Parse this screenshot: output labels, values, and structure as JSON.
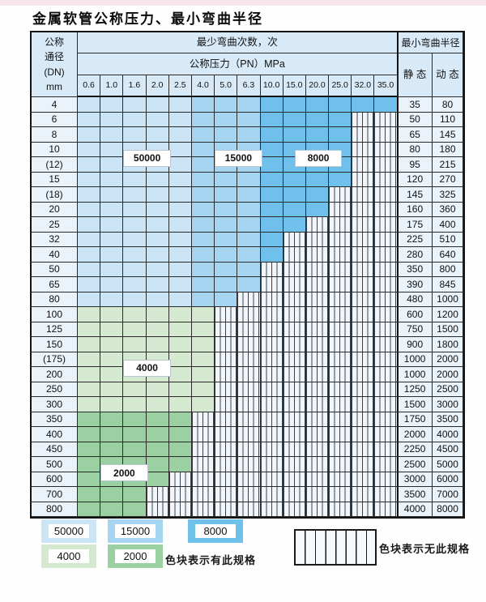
{
  "title": "金属软管公称压力、最小弯曲半径",
  "table": {
    "corner_header": {
      "line1": "公称",
      "line2": "通径",
      "line3": "(DN)",
      "line4": "mm"
    },
    "bend_cycles_header": "最少弯曲次数，次",
    "pressure_header": "公称压力（PN）MPa",
    "radius_header": "最小弯曲半径",
    "static_header": "静 态",
    "dynamic_header": "动 态",
    "pressure_ticks": [
      "0.6",
      "1.0",
      "1.6",
      "2.0",
      "2.5",
      "4.0",
      "5.0",
      "6.3",
      "10.0",
      "15.0",
      "20.0",
      "25.0",
      "32.0",
      "35.0"
    ],
    "rows": [
      {
        "dn": "4",
        "zone": "blue",
        "colored_until": "35.0",
        "static": "35",
        "dynamic": "80"
      },
      {
        "dn": "6",
        "zone": "blue",
        "colored_until": "25.0",
        "static": "50",
        "dynamic": "110"
      },
      {
        "dn": "8",
        "zone": "blue",
        "colored_until": "25.0",
        "static": "65",
        "dynamic": "145"
      },
      {
        "dn": "10",
        "zone": "blue",
        "colored_until": "25.0",
        "static": "80",
        "dynamic": "180"
      },
      {
        "dn": "(12)",
        "zone": "blue",
        "colored_until": "25.0",
        "static": "95",
        "dynamic": "215"
      },
      {
        "dn": "15",
        "zone": "blue",
        "colored_until": "25.0",
        "static": "120",
        "dynamic": "270"
      },
      {
        "dn": "(18)",
        "zone": "blue",
        "colored_until": "20.0",
        "static": "145",
        "dynamic": "325"
      },
      {
        "dn": "20",
        "zone": "blue",
        "colored_until": "20.0",
        "static": "160",
        "dynamic": "360"
      },
      {
        "dn": "25",
        "zone": "blue",
        "colored_until": "15.0",
        "static": "175",
        "dynamic": "400"
      },
      {
        "dn": "32",
        "zone": "blue",
        "colored_until": "10.0",
        "static": "225",
        "dynamic": "510"
      },
      {
        "dn": "40",
        "zone": "blue",
        "colored_until": "10.0",
        "static": "280",
        "dynamic": "640"
      },
      {
        "dn": "50",
        "zone": "blue",
        "colored_until": "6.3",
        "static": "350",
        "dynamic": "800"
      },
      {
        "dn": "65",
        "zone": "blue",
        "colored_until": "6.3",
        "static": "390",
        "dynamic": "845"
      },
      {
        "dn": "80",
        "zone": "blue",
        "colored_until": "5.0",
        "static": "480",
        "dynamic": "1000"
      },
      {
        "dn": "100",
        "zone": "4000",
        "colored_until": "4.0",
        "static": "600",
        "dynamic": "1200"
      },
      {
        "dn": "125",
        "zone": "4000",
        "colored_until": "4.0",
        "static": "750",
        "dynamic": "1500"
      },
      {
        "dn": "150",
        "zone": "4000",
        "colored_until": "4.0",
        "static": "900",
        "dynamic": "1800"
      },
      {
        "dn": "(175)",
        "zone": "4000",
        "colored_until": "4.0",
        "static": "1000",
        "dynamic": "2000"
      },
      {
        "dn": "200",
        "zone": "4000",
        "colored_until": "4.0",
        "static": "1000",
        "dynamic": "2000"
      },
      {
        "dn": "250",
        "zone": "4000",
        "colored_until": "4.0",
        "static": "1250",
        "dynamic": "2500"
      },
      {
        "dn": "300",
        "zone": "4000",
        "colored_until": "4.0",
        "static": "1500",
        "dynamic": "3000"
      },
      {
        "dn": "350",
        "zone": "2000",
        "colored_until": "2.5",
        "static": "1750",
        "dynamic": "3500"
      },
      {
        "dn": "400",
        "zone": "2000",
        "colored_until": "2.5",
        "static": "2000",
        "dynamic": "4000"
      },
      {
        "dn": "450",
        "zone": "2000",
        "colored_until": "2.5",
        "static": "2250",
        "dynamic": "4500"
      },
      {
        "dn": "500",
        "zone": "2000",
        "colored_until": "2.5",
        "static": "2500",
        "dynamic": "5000"
      },
      {
        "dn": "600",
        "zone": "2000",
        "colored_until": "2.0",
        "static": "3000",
        "dynamic": "6000"
      },
      {
        "dn": "700",
        "zone": "2000",
        "colored_until": "1.6",
        "static": "3500",
        "dynamic": "7000"
      },
      {
        "dn": "800",
        "zone": "2000",
        "colored_until": "1.6",
        "static": "4000",
        "dynamic": "8000"
      }
    ]
  },
  "colors": {
    "50000": "#cbe4f6",
    "15000": "#a6d5f1",
    "8000": "#6fc0ea",
    "4000": "#d5e9d0",
    "2000": "#9bd0a3"
  },
  "overlay_labels": [
    {
      "text": "50000",
      "col_from": 2,
      "col_to": 3,
      "row_boundary_after": 3
    },
    {
      "text": "15000",
      "col_from": 6,
      "col_to": 7,
      "row_boundary_after": 3
    },
    {
      "text": "8000",
      "col_from": 9.5,
      "col_to": 10.5,
      "row_boundary_after": 3
    },
    {
      "text": "4000",
      "col_from": 2,
      "col_to": 3,
      "row_boundary_after": 17
    },
    {
      "text": "2000",
      "col_from": 1,
      "col_to": 2,
      "row_boundary_after": 24
    }
  ],
  "legend": {
    "has_spec_items": [
      {
        "label": "50000",
        "color_key": "50000"
      },
      {
        "label": "15000",
        "color_key": "15000"
      },
      {
        "label": "8000",
        "color_key": "8000"
      },
      {
        "label": "4000",
        "color_key": "4000"
      },
      {
        "label": "2000",
        "color_key": "2000"
      }
    ],
    "has_spec_note": "色块表示有此规格",
    "no_spec_note": "色块表示无此规格"
  }
}
